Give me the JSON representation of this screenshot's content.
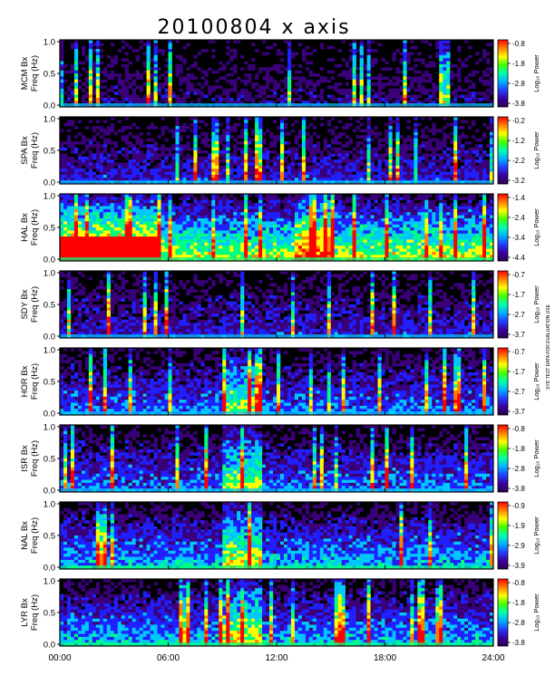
{
  "title": "20100804 x axis",
  "side_note": "SYD TEST DATA FOR EVALUATION USE",
  "colorbar_label": "Log₁₀ Power",
  "chart_data": {
    "type": "heatmap",
    "title": "20100804 x axis",
    "x_ticks": [
      "00:00",
      "06:00",
      "12:00",
      "18:00",
      "24:00"
    ],
    "x_range_hours": [
      0,
      24
    ],
    "y_ticks": [
      "0.0",
      "0.5",
      "1.0"
    ],
    "y_range": [
      0,
      1.0
    ],
    "colormap": [
      "#000000",
      "#3a007a",
      "#2020ff",
      "#00c8ff",
      "#00ff80",
      "#ffff00",
      "#ff8000",
      "#ff0000"
    ],
    "panels": [
      {
        "station": "MCM",
        "ylabel": "MCM Bx\nFreq (Hz)",
        "cbar_ticks": [
          "-0.8",
          "-1.8",
          "-2.8",
          "-3.8"
        ],
        "activity": "low"
      },
      {
        "station": "SPA",
        "ylabel": "SPA Bx\nFreq (Hz)",
        "cbar_ticks": [
          "-0.2",
          "-1.2",
          "-2.2",
          "-3.2"
        ],
        "activity": "low-medium"
      },
      {
        "station": "HAL",
        "ylabel": "HAL Bx\nFreq (Hz)",
        "cbar_ticks": [
          "-1.4",
          "-2.4",
          "-3.4",
          "-4.4"
        ],
        "activity": "high"
      },
      {
        "station": "SDY",
        "ylabel": "SDY Bx\nFreq (Hz)",
        "cbar_ticks": [
          "-0.7",
          "-1.7",
          "-2.7",
          "-3.7"
        ],
        "activity": "low-medium"
      },
      {
        "station": "HOR",
        "ylabel": "HOR Bx\nFreq (Hz)",
        "cbar_ticks": [
          "-0.7",
          "-1.7",
          "-2.7",
          "-3.7"
        ],
        "activity": "medium"
      },
      {
        "station": "ISR",
        "ylabel": "ISR Bx\nFreq (Hz)",
        "cbar_ticks": [
          "-0.8",
          "-1.8",
          "-2.8",
          "-3.8"
        ],
        "activity": "medium"
      },
      {
        "station": "NAL",
        "ylabel": "NAL Bx\nFreq (Hz)",
        "cbar_ticks": [
          "-0.9",
          "-1.9",
          "-2.9",
          "-3.9"
        ],
        "activity": "medium-high"
      },
      {
        "station": "LYR",
        "ylabel": "LYR Bx\nFreq (Hz)",
        "cbar_ticks": [
          "-0.8",
          "-1.8",
          "-2.8",
          "-3.8"
        ],
        "activity": "medium-high"
      }
    ]
  }
}
